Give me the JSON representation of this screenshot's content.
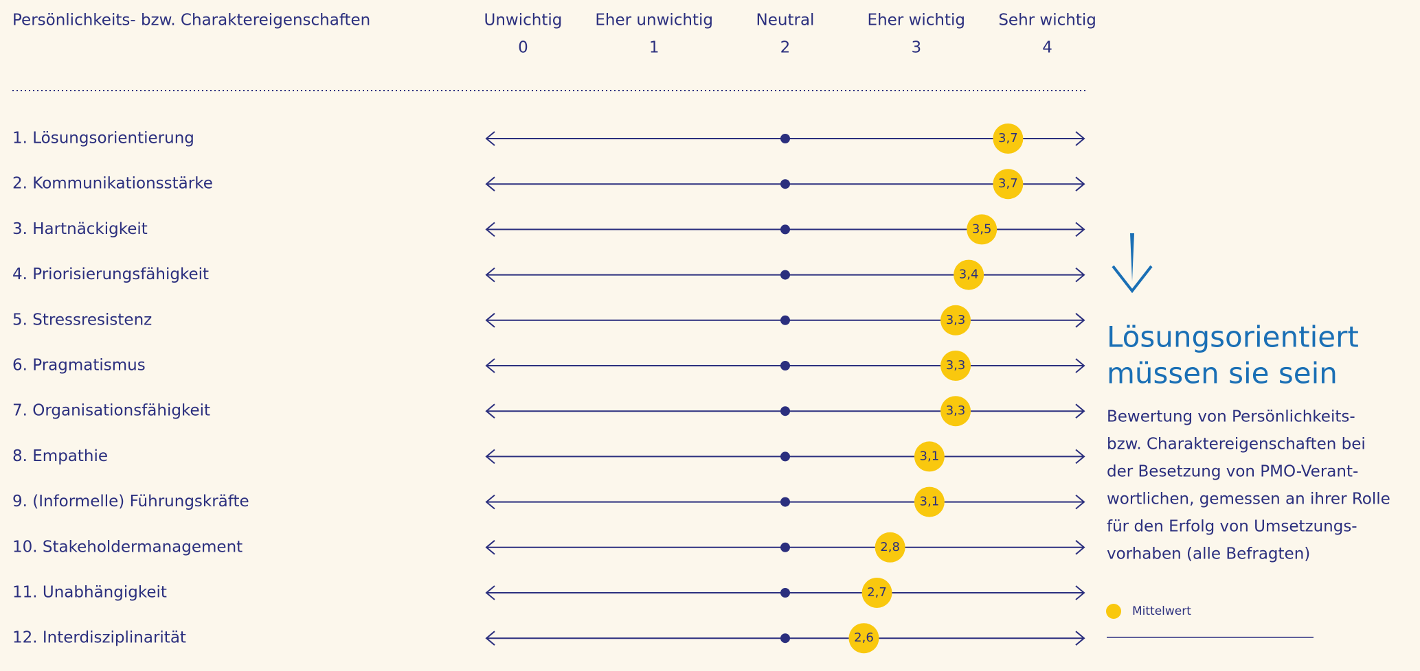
{
  "chart_data": {
    "type": "dot",
    "column_header": "Persönlichkeits- bzw. Charaktereigenschaften",
    "xtick_names": [
      "Unwichtig",
      "Eher unwichtig",
      "Neutral",
      "Eher wichtig",
      "Sehr wichtig"
    ],
    "xticks": [
      0,
      1,
      2,
      3,
      4
    ],
    "xlim": [
      -0.28,
      4.28
    ],
    "midpoint": 2,
    "categories": [
      "1. Lösungsorientierung",
      "2. Kommunikationsstärke",
      "3. Hartnäckigkeit",
      "4. Priorisierungsfähigkeit",
      "5. Stressresistenz",
      "6. Pragmatismus",
      "7. Organisationsfähigkeit",
      "8. Empathie",
      "9. (Informelle) Führungskräfte",
      "10. Stakeholdermanagement",
      "11. Unabhängigkeit",
      "12. Interdisziplinarität"
    ],
    "series": [
      {
        "name": "Mittelwert",
        "color": "#f9c80e",
        "values": [
          3.7,
          3.7,
          3.5,
          3.4,
          3.3,
          3.3,
          3.3,
          3.1,
          3.1,
          2.8,
          2.7,
          2.6
        ],
        "value_labels": [
          "3,7",
          "3,7",
          "3,5",
          "3,4",
          "3,3",
          "3,3",
          "3,3",
          "3,1",
          "3,1",
          "2,8",
          "2,7",
          "2,6"
        ]
      }
    ],
    "line_color": "#2b2f7e",
    "headline": [
      "Lösungsorientiert",
      "müssen sie sein"
    ],
    "description": [
      "Bewertung von Persönlichkeits-",
      "bzw. Charaktereigenschaften bei",
      "der Besetzung von PMO-Verant-",
      "wortlichen, gemessen an ihrer Rolle",
      "für den Erfolg von Umsetzungs-",
      "vorhaben (alle Befragten)"
    ]
  }
}
